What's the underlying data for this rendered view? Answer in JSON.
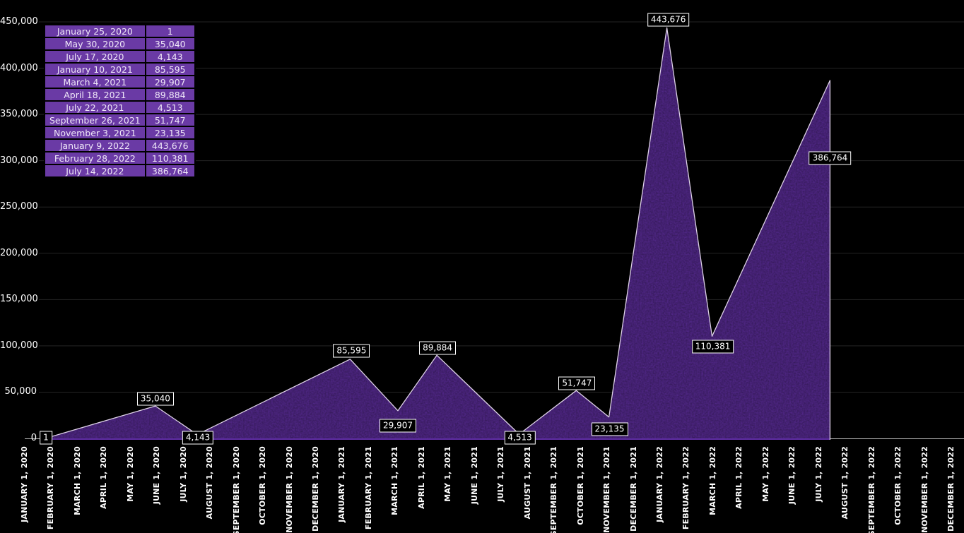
{
  "colors": {
    "background": "#000000",
    "area_fill": "#5a2c97",
    "area_stroke": "#ddd1e6",
    "area_bottom_stroke": "#5e2da2",
    "grid": "#242424",
    "axis": "#b9b9b9",
    "table_cell": "#6a3aa5",
    "table_text": "#efe7f8",
    "annotation_bg": "#000000",
    "annotation_border": "#ffffff",
    "text": "#ffffff"
  },
  "table": {
    "rows": [
      {
        "date": "January 25, 2020",
        "value": "1"
      },
      {
        "date": "May 30, 2020",
        "value": "35,040"
      },
      {
        "date": "July 17, 2020",
        "value": "4,143"
      },
      {
        "date": "January 10, 2021",
        "value": "85,595"
      },
      {
        "date": "March 4, 2021",
        "value": "29,907"
      },
      {
        "date": "April 18, 2021",
        "value": "89,884"
      },
      {
        "date": "July 22, 2021",
        "value": "4,513"
      },
      {
        "date": "September 26, 2021",
        "value": "51,747"
      },
      {
        "date": "November 3, 2021",
        "value": "23,135"
      },
      {
        "date": "January 9, 2022",
        "value": "443,676"
      },
      {
        "date": "February 28, 2022",
        "value": "110,381"
      },
      {
        "date": "July 14, 2022",
        "value": "386,764"
      }
    ]
  },
  "chart_data": {
    "type": "area",
    "title": "",
    "xlabel": "",
    "ylabel": "",
    "ylim": [
      0,
      450000
    ],
    "grid": true,
    "legend": false,
    "y_tick_labels": [
      "0",
      "50,000",
      "100,000",
      "150,000",
      "200,000",
      "250,000",
      "300,000",
      "350,000",
      "400,000",
      "450,000"
    ],
    "x_labels": [
      "JANUARY 1, 2020",
      "FEBRUARY 1, 2020",
      "MARCH 1, 2020",
      "APRIL 1, 2020",
      "MAY 1, 2020",
      "JUNE 1, 2020",
      "JULY 1, 2020",
      "AUGUST 1, 2020",
      "SEPTEMBER 1, 2020",
      "OCTOBER 1, 2020",
      "NOVEMBER 1, 2020",
      "DECEMBER 1, 2020",
      "JANUARY 1, 2021",
      "FEBRUARY 1, 2021",
      "MARCH 1, 2021",
      "APRIL 1, 2021",
      "MAY 1, 2021",
      "JUNE 1, 2021",
      "JULY 1, 2021",
      "AUGUST 1, 2021",
      "SEPTEMBER 1, 2021",
      "OCTOBER 1, 2021",
      "NOVEMBER 1, 2021",
      "DECEMBER 1, 2021",
      "JANUARY 1, 2022",
      "FEBRUARY 1, 2022",
      "MARCH 1, 2022",
      "APRIL 1, 2022",
      "MAY 1, 2022",
      "JUNE 1, 2022",
      "JULY 1, 2022",
      "AUGUST 1, 2022",
      "SEPTEMBER 1, 2022",
      "OCTOBER 1, 2022",
      "NOVEMBER 1, 2022",
      "DECEMBER 1, 2022"
    ],
    "series": [
      {
        "name": "values-over-time",
        "points": [
          {
            "date": "January 25, 2020",
            "value": 1,
            "label": "1"
          },
          {
            "date": "May 30, 2020",
            "value": 35040,
            "label": "35,040"
          },
          {
            "date": "July 17, 2020",
            "value": 4143,
            "label": "4,143"
          },
          {
            "date": "January 10, 2021",
            "value": 85595,
            "label": "85,595"
          },
          {
            "date": "March 4, 2021",
            "value": 29907,
            "label": "29,907"
          },
          {
            "date": "April 18, 2021",
            "value": 89884,
            "label": "89,884"
          },
          {
            "date": "July 22, 2021",
            "value": 4513,
            "label": "4,513"
          },
          {
            "date": "September 26, 2021",
            "value": 51747,
            "label": "51,747"
          },
          {
            "date": "November 3, 2021",
            "value": 23135,
            "label": "23,135"
          },
          {
            "date": "January 9, 2022",
            "value": 443676,
            "label": "443,676"
          },
          {
            "date": "February 28, 2022",
            "value": 110381,
            "label": "110,381"
          },
          {
            "date": "July 14, 2022",
            "value": 386764,
            "label": "386,764"
          }
        ]
      }
    ]
  }
}
